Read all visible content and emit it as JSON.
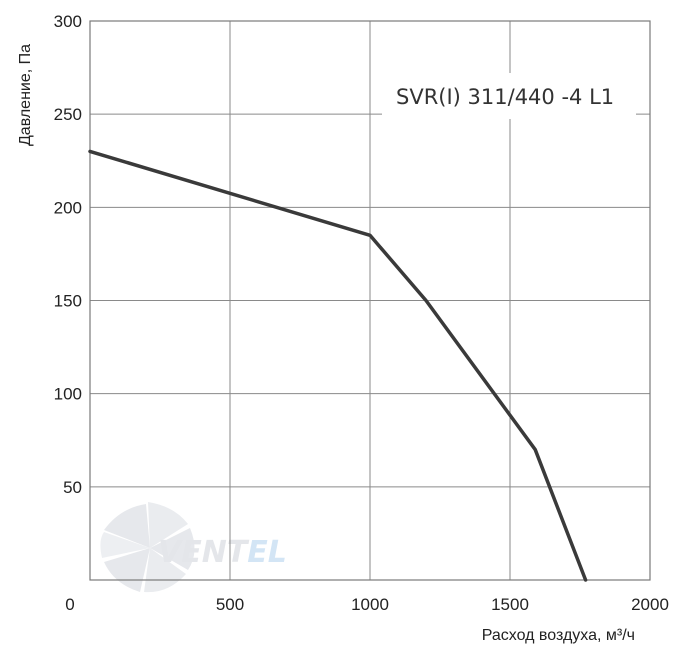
{
  "chart_data": {
    "type": "line",
    "title": "",
    "xlabel": "Расход воздуха, м³/ч",
    "ylabel": "Давление, Па",
    "xlim": [
      0,
      2000
    ],
    "ylim": [
      0,
      300
    ],
    "xticks": [
      "0",
      "500",
      "1000",
      "1500",
      "2000"
    ],
    "yticks": [
      "300",
      "250",
      "200",
      "150",
      "100",
      "50"
    ],
    "grid": true,
    "annotation": "SVR(I) 311/440 -4 L1",
    "series": [
      {
        "color": "#3a3a3a",
        "x": [
          0,
          1000,
          1200,
          1590,
          1770
        ],
        "y": [
          230,
          185,
          150,
          70,
          0
        ]
      }
    ]
  },
  "watermark": {
    "text_part1": "VENT",
    "text_part2": "EL",
    "icon": "fan-icon"
  }
}
